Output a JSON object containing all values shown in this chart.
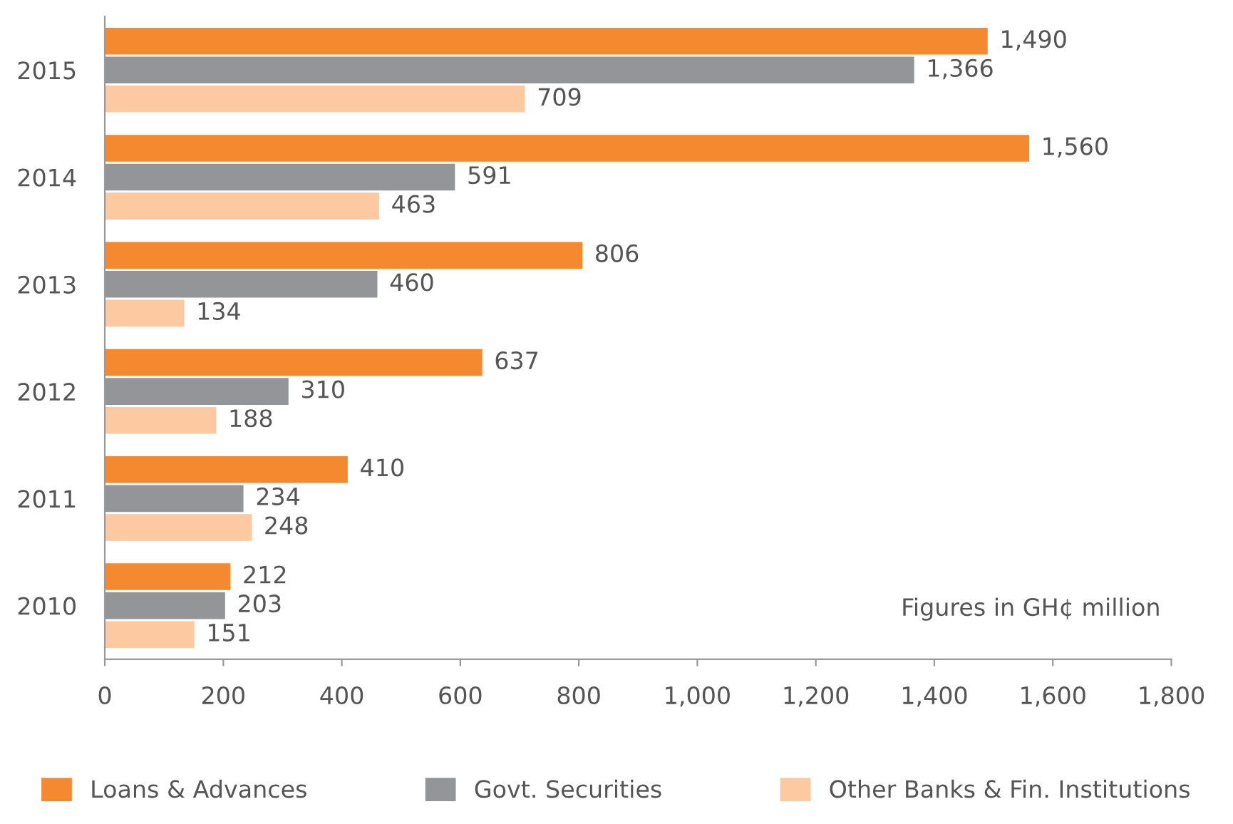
{
  "chart_data": {
    "type": "bar",
    "orientation": "horizontal",
    "categories": [
      "2015",
      "2014",
      "2013",
      "2012",
      "2011",
      "2010"
    ],
    "series": [
      {
        "name": "Loans & Advances",
        "color": "#f5892f",
        "values": [
          1490,
          1560,
          806,
          637,
          410,
          212
        ],
        "value_labels": [
          "1,490",
          "1,560",
          "806",
          "637",
          "410",
          "212"
        ]
      },
      {
        "name": "Govt. Securities",
        "color": "#939598",
        "values": [
          1366,
          591,
          460,
          310,
          234,
          203
        ],
        "value_labels": [
          "1,366",
          "591",
          "460",
          "310",
          "234",
          "203"
        ]
      },
      {
        "name": "Other Banks & Fin. Institutions",
        "color": "#fcc9a1",
        "values": [
          709,
          463,
          134,
          188,
          248,
          151
        ],
        "value_labels": [
          "709",
          "463",
          "134",
          "188",
          "248",
          "151"
        ]
      }
    ],
    "xlim": [
      0,
      1800
    ],
    "xticks": [
      0,
      200,
      400,
      600,
      800,
      {
        "value": 1000,
        "label": "1,000"
      },
      {
        "value": 1200,
        "label": "1,200"
      },
      {
        "value": 1400,
        "label": "1,400"
      },
      {
        "value": 1600,
        "label": "1,600"
      },
      {
        "value": 1800,
        "label": "1,800"
      }
    ],
    "annotations": [
      "Figures in GH¢ million"
    ],
    "legend": "bottom",
    "grid": false
  }
}
